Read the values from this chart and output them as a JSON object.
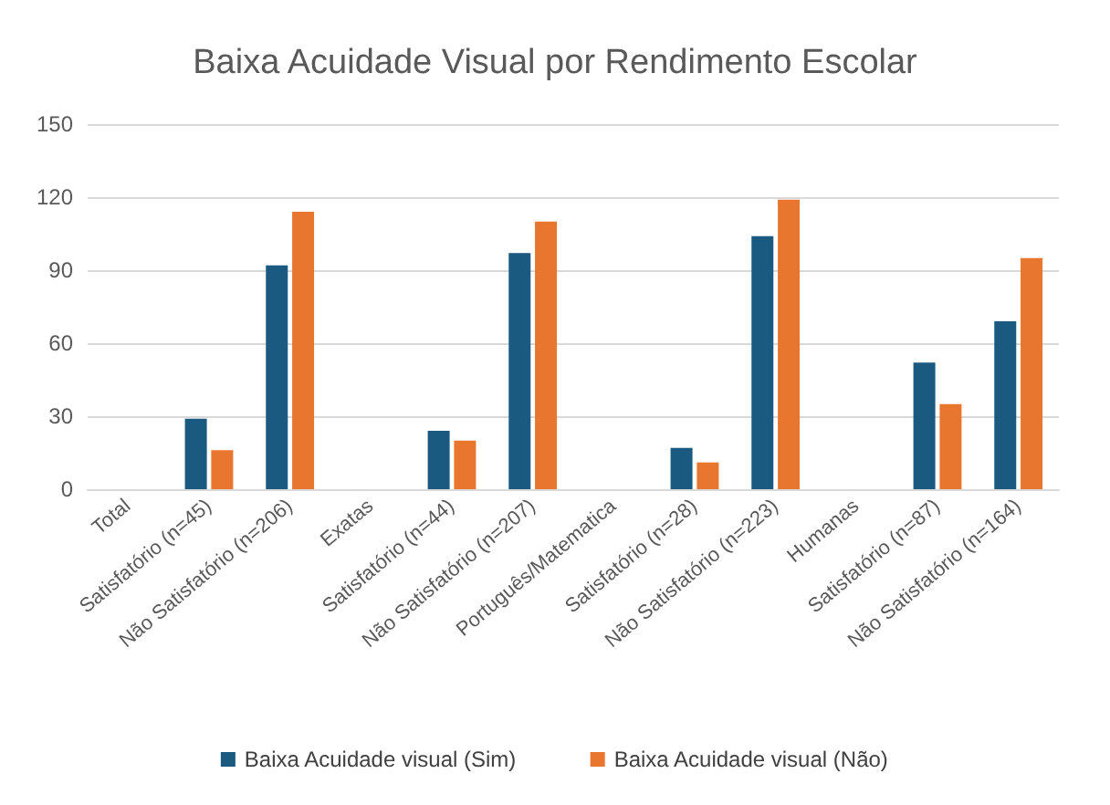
{
  "chart_data": {
    "type": "bar",
    "title": "Baixa Acuidade Visual por Rendimento Escolar",
    "categories": [
      "Total",
      "Satisfatório (n=45)",
      "Não Satisfatório (n=206)",
      "Exatas",
      "Satisfatório (n=44)",
      "Não Satisfatório (n=207)",
      "Português/Matematica",
      "Satisfatório (n=28)",
      "Não Satisfatório (n=223)",
      "Humanas",
      "Satisfatório (n=87)",
      "Não Satisfatório (n=164)"
    ],
    "series": [
      {
        "name": "Baixa Acuidade visual (Sim)",
        "color": "#1b5a80",
        "values": [
          null,
          29,
          92,
          null,
          24,
          97,
          null,
          17,
          104,
          null,
          52,
          69
        ]
      },
      {
        "name": "Baixa Acuidade visual (Não)",
        "color": "#e8762f",
        "values": [
          null,
          16,
          114,
          null,
          20,
          110,
          null,
          11,
          119,
          null,
          35,
          95
        ]
      }
    ],
    "ylim": [
      0,
      150
    ],
    "yticks": [
      0,
      30,
      60,
      90,
      120,
      150
    ],
    "grid": "y",
    "legend": "bottom"
  }
}
